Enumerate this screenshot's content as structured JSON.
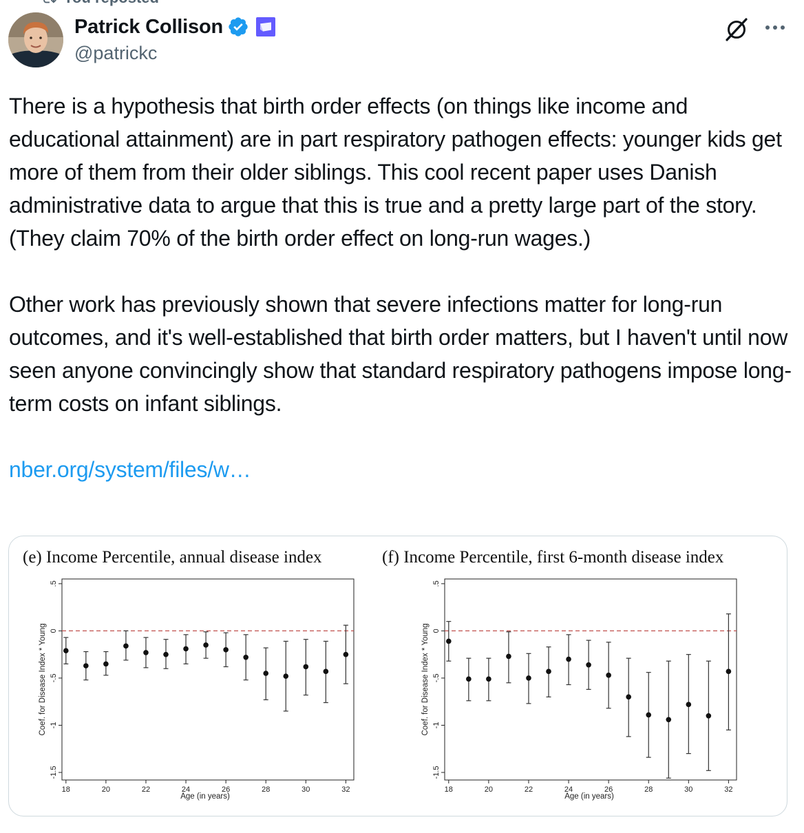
{
  "repost": {
    "label": "You reposted"
  },
  "author": {
    "name": "Patrick Collison",
    "handle": "@patrickc"
  },
  "tweet": {
    "paragraph1": "There is a hypothesis that birth order effects (on things like income and educational attainment) are in part respiratory pathogen effects: younger kids get more of them from their older siblings. This cool recent paper uses Danish administrative data to argue that this is true and a pretty large part of the story. (They claim 70% of the birth order effect on long-run wages.)",
    "paragraph2": "Other work has previously shown that severe infections matter for long-run outcomes, and it's well-established that birth order matters, but I haven't until now seen anyone convincingly show that standard respiratory pathogens impose long-term costs on infant siblings.",
    "link": "nber.org/system/files/w…"
  },
  "colors": {
    "link": "#1d9bf0",
    "verified": "#1d9bf0",
    "affiliation": "#635bff",
    "reference_line": "#c0504d",
    "secondary_text": "#536471"
  },
  "chart_data": [
    {
      "type": "scatter",
      "title": "(e) Income Percentile, annual disease index",
      "xlabel": "Age (in years)",
      "ylabel": "Coef. for Disease Index * Young",
      "xlim": [
        17.8,
        32.4
      ],
      "ylim": [
        -1.58,
        0.55
      ],
      "xticks": [
        18,
        20,
        22,
        24,
        26,
        28,
        30,
        32
      ],
      "yticks": [
        -1.5,
        -1,
        -0.5,
        0,
        0.5
      ],
      "ytick_labels": [
        "-1.5",
        "-1",
        "-.5",
        "0",
        ".5"
      ],
      "reference_line": 0,
      "x": [
        18,
        19,
        20,
        21,
        22,
        23,
        24,
        25,
        26,
        27,
        28,
        29,
        30,
        31,
        32
      ],
      "values": [
        -0.21,
        -0.37,
        -0.35,
        -0.16,
        -0.23,
        -0.25,
        -0.19,
        -0.15,
        -0.2,
        -0.28,
        -0.45,
        -0.48,
        -0.38,
        -0.43,
        -0.25
      ],
      "ci_low": [
        -0.35,
        -0.52,
        -0.47,
        -0.31,
        -0.39,
        -0.4,
        -0.35,
        -0.29,
        -0.38,
        -0.52,
        -0.73,
        -0.85,
        -0.68,
        -0.76,
        -0.56
      ],
      "ci_high": [
        -0.07,
        -0.22,
        -0.22,
        0.0,
        -0.07,
        -0.09,
        -0.04,
        -0.01,
        -0.02,
        -0.04,
        -0.18,
        -0.11,
        -0.09,
        -0.11,
        0.06
      ]
    },
    {
      "type": "scatter",
      "title": "(f) Income Percentile, first 6-month disease index",
      "xlabel": "Age (in years)",
      "ylabel": "Coef. for Disease Index * Young",
      "xlim": [
        17.8,
        32.4
      ],
      "ylim": [
        -1.58,
        0.55
      ],
      "xticks": [
        18,
        20,
        22,
        24,
        26,
        28,
        30,
        32
      ],
      "yticks": [
        -1.5,
        -1,
        -0.5,
        0,
        0.5
      ],
      "ytick_labels": [
        "-1.5",
        "-1",
        "-.5",
        "0",
        ".5"
      ],
      "reference_line": 0,
      "x": [
        18,
        19,
        20,
        21,
        22,
        23,
        24,
        25,
        26,
        27,
        28,
        29,
        30,
        31,
        32
      ],
      "values": [
        -0.11,
        -0.51,
        -0.51,
        -0.27,
        -0.5,
        -0.43,
        -0.3,
        -0.36,
        -0.47,
        -0.7,
        -0.89,
        -0.94,
        -0.78,
        -0.9,
        -0.43
      ],
      "ci_low": [
        -0.32,
        -0.74,
        -0.74,
        -0.55,
        -0.77,
        -0.7,
        -0.57,
        -0.62,
        -0.82,
        -1.12,
        -1.34,
        -1.56,
        -1.3,
        -1.48,
        -1.05
      ],
      "ci_high": [
        0.1,
        -0.29,
        -0.29,
        -0.01,
        -0.24,
        -0.17,
        -0.04,
        -0.1,
        -0.12,
        -0.29,
        -0.44,
        -0.32,
        -0.25,
        -0.32,
        0.18
      ]
    }
  ]
}
